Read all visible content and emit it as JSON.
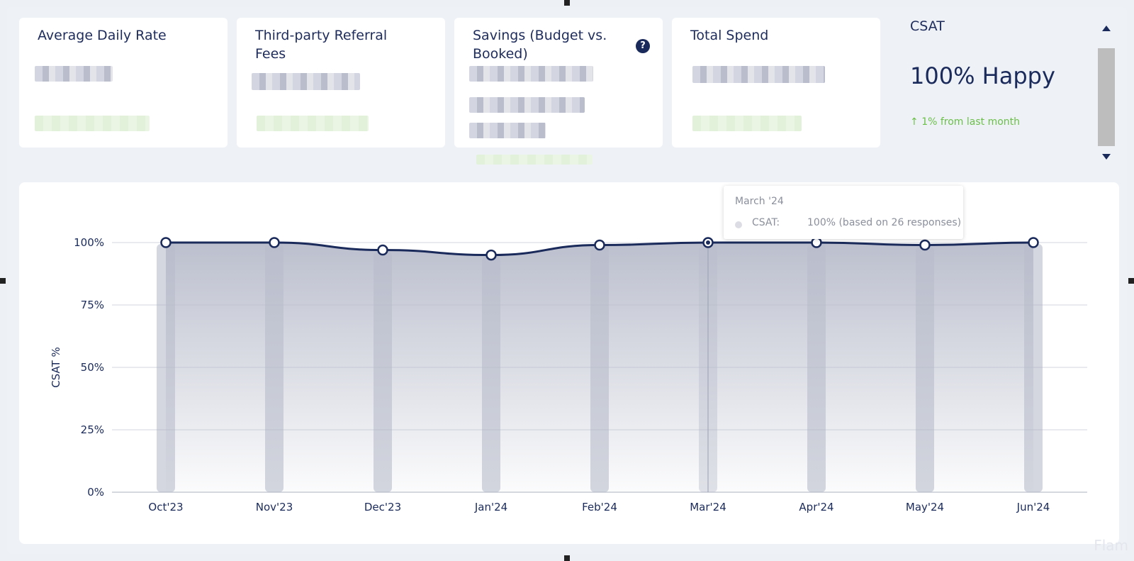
{
  "kpis": [
    {
      "title": "Average Daily Rate"
    },
    {
      "title": "Third-party Referral Fees"
    },
    {
      "title": "Savings (Budget vs. Booked)",
      "help_icon": "question-circle-icon",
      "help_text": "?"
    },
    {
      "title": "Total Spend"
    }
  ],
  "csat_card": {
    "title": "CSAT",
    "value": "100% Happy",
    "delta": "1% from last month",
    "delta_icon": "arrow-up-icon",
    "delta_color": "#6cc04a"
  },
  "tooltip": {
    "title": "March '24",
    "label": "CSAT:",
    "value": "100% (based on 26 responses)"
  },
  "watermark": "Flam",
  "colors": {
    "accent": "#1a2a5a",
    "positive": "#6cc04a",
    "area": "#b8bccb",
    "bar": "#a9afc0"
  },
  "chart_data": {
    "type": "line",
    "ylabel": "CSAT %",
    "xlabel": "",
    "ylim": [
      0,
      100
    ],
    "yticks": [
      0,
      25,
      50,
      75,
      100
    ],
    "ytick_labels": [
      "0%",
      "25%",
      "50%",
      "75%",
      "100%"
    ],
    "categories": [
      "Oct'23",
      "Nov'23",
      "Dec'23",
      "Jan'24",
      "Feb'24",
      "Mar'24",
      "Apr'24",
      "May'24",
      "Jun'24"
    ],
    "series": [
      {
        "values": [
          100,
          100,
          97,
          95,
          99,
          100,
          100,
          99,
          100
        ]
      }
    ],
    "highlighted_category": "Mar'24",
    "grid": true
  }
}
